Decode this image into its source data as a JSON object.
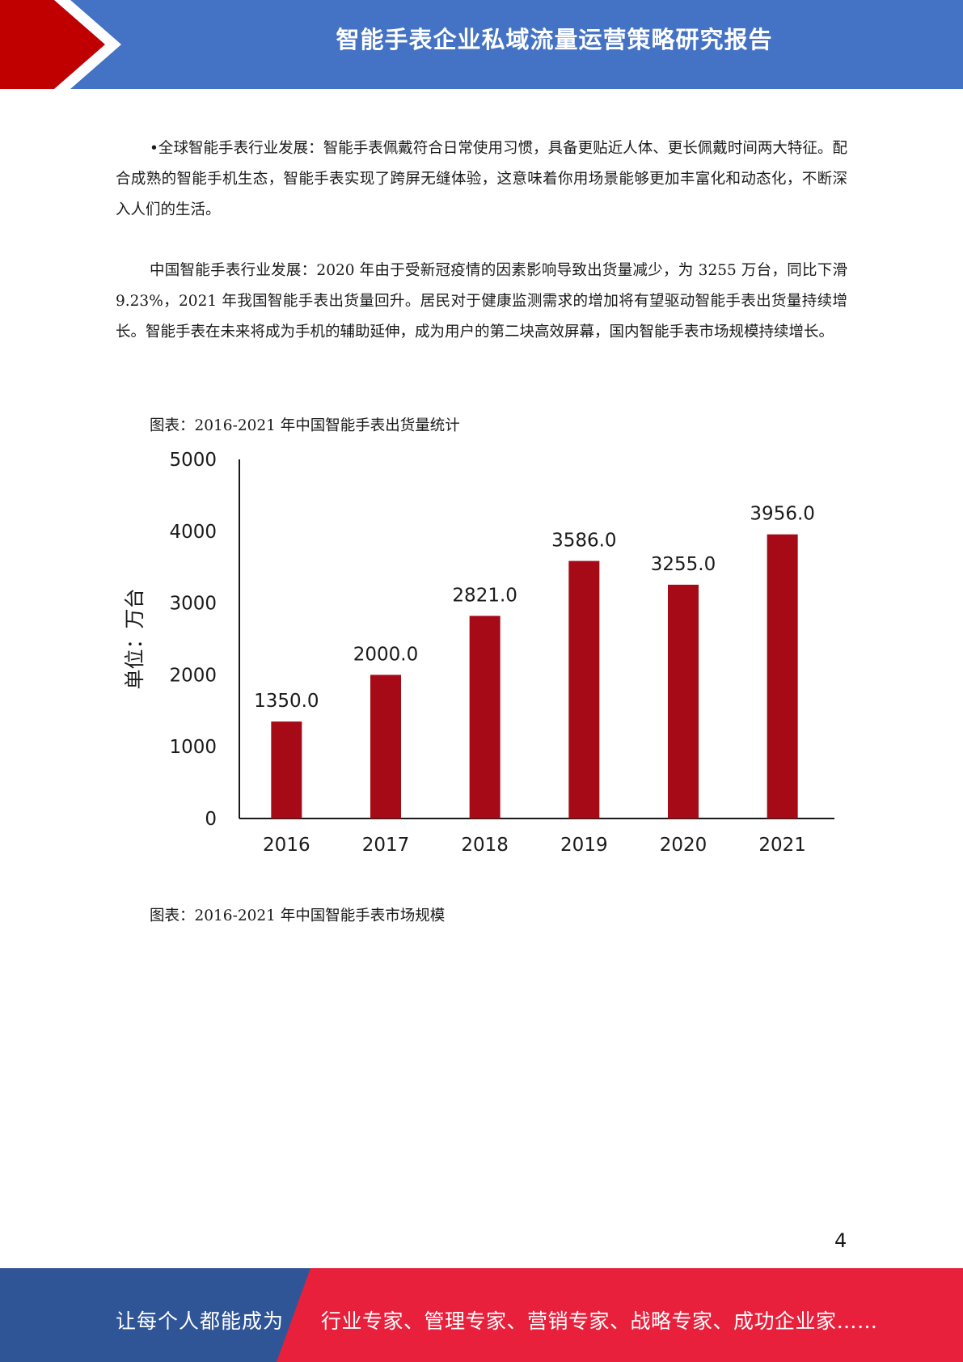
{
  "header": {
    "title": "智能手表企业私域流量运营策略研究报告"
  },
  "paragraphs": [
    "•全球智能手表行业发展：智能手表佩戴符合日常使用习惯，具备更贴近人体、更长佩戴时间两大特征。配合成熟的智能手机生态，智能手表实现了跨屏无缝体验，这意味着你用场景能够更加丰富化和动态化，不断深入人们的生活。",
    "中国智能手表行业发展：2020 年由于受新冠疫情的因素影响导致出货量减少，为 3255 万台，同比下滑 9.23%，2021 年我国智能手表出货量回升。居民对于健康监测需求的增加将有望驱动智能手表出货量持续增长。智能手表在未来将成为手机的辅助延伸，成为用户的第二块高效屏幕，国内智能手表市场规模持续增长。"
  ],
  "captions": [
    "图表：2016-2021 年中国智能手表出货量统计",
    "图表：2016-2021 年中国智能手表市场规模"
  ],
  "chart_data": {
    "type": "bar",
    "title": "",
    "xlabel": "",
    "ylabel": "单位：万台",
    "categories": [
      "2016",
      "2017",
      "2018",
      "2019",
      "2020",
      "2021"
    ],
    "values": [
      1350.0,
      2000.0,
      2821.0,
      3586.0,
      3255.0,
      3956.0
    ],
    "data_labels": [
      "1350.0",
      "2000.0",
      "2821.0",
      "3586.0",
      "3255.0",
      "3956.0"
    ],
    "yticks": [
      "0",
      "1000",
      "2000",
      "3000",
      "4000",
      "5000"
    ],
    "ylim": [
      0,
      5000
    ],
    "grid": false,
    "bar_color": "#a50a16"
  },
  "page_number": "4",
  "footer": {
    "left_text": "让每个人都能成为",
    "right_text": "行业专家、管理专家、营销专家、战略专家、成功企业家……"
  },
  "colors": {
    "header_blue": "#4472c4",
    "header_red": "#c00000",
    "footer_blue": "#2f5597",
    "footer_red": "#e8203b"
  }
}
